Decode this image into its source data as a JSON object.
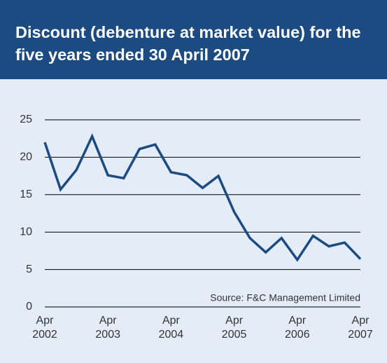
{
  "chart_data": {
    "type": "line",
    "title": "Discount (debenture at market value) for the five years ended 30 April 2007",
    "annotation": "Source: F&C Management Limited",
    "x": [
      2002.25,
      2002.5,
      2002.75,
      2003,
      2003.25,
      2003.5,
      2003.75,
      2004,
      2004.25,
      2004.5,
      2004.75,
      2005,
      2005.25,
      2005.5,
      2005.75,
      2006,
      2006.25,
      2006.5,
      2006.75,
      2007,
      2007.25
    ],
    "series": [
      {
        "color": "#1c4b82",
        "values": [
          22.0,
          15.7,
          18.3,
          22.8,
          17.6,
          17.2,
          21.1,
          21.7,
          18.0,
          17.6,
          15.9,
          17.5,
          12.7,
          9.2,
          7.3,
          9.2,
          6.3,
          9.5,
          8.1,
          8.6,
          6.4
        ]
      }
    ],
    "xlim": [
      2002.25,
      2007.25
    ],
    "xticks": [
      {
        "value": 2002.25,
        "label": "Apr\n2002"
      },
      {
        "value": 2003.25,
        "label": "Apr\n2003"
      },
      {
        "value": 2004.25,
        "label": "Apr\n2004"
      },
      {
        "value": 2005.25,
        "label": "Apr\n2005"
      },
      {
        "value": 2006.25,
        "label": "Apr\n2006"
      },
      {
        "value": 2007.25,
        "label": "Apr\n2007"
      }
    ],
    "ylim": [
      0,
      25
    ],
    "yticks": [
      0,
      5,
      10,
      15,
      20,
      25
    ],
    "grid": true
  }
}
